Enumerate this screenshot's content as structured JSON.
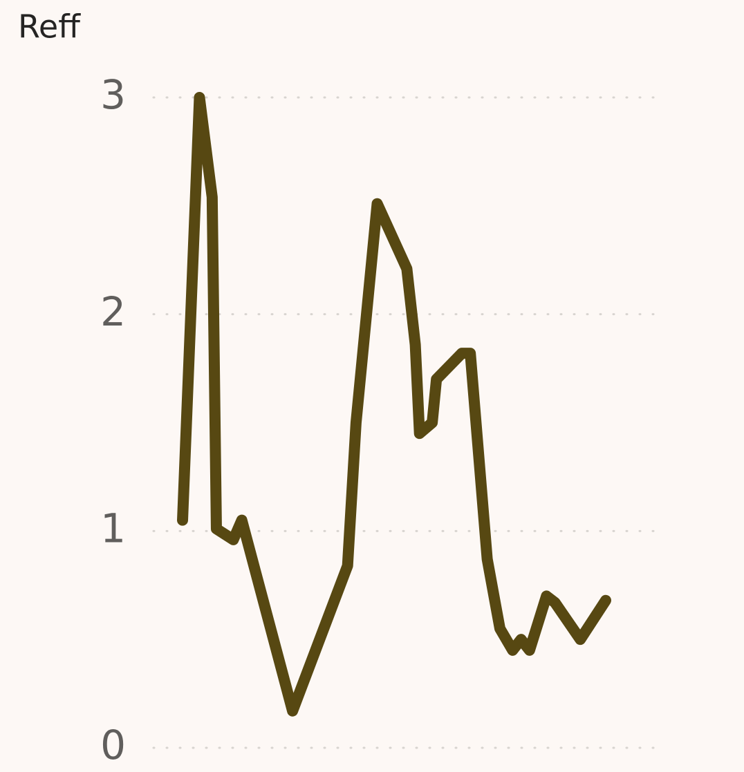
{
  "chart_data": {
    "type": "line",
    "title": "Reff",
    "x": [
      0,
      2,
      3.5,
      4,
      6,
      7,
      13,
      19.5,
      20.5,
      23,
      26.5,
      27.5,
      28,
      29.5,
      30,
      33,
      34,
      36,
      37.5,
      39,
      40,
      41,
      43,
      44,
      47,
      50
    ],
    "series": [
      {
        "name": "Reff",
        "color": "#574812",
        "values": [
          1.05,
          3.0,
          2.54,
          1.01,
          0.96,
          1.05,
          0.17,
          0.84,
          1.5,
          2.51,
          2.21,
          1.86,
          1.45,
          1.5,
          1.7,
          1.82,
          1.82,
          0.87,
          0.55,
          0.45,
          0.5,
          0.45,
          0.7,
          0.67,
          0.5,
          0.68
        ]
      }
    ],
    "xlim": [
      0,
      50
    ],
    "ylim": [
      0,
      3
    ],
    "yticks": [
      0,
      1,
      2,
      3
    ],
    "grid": true
  }
}
